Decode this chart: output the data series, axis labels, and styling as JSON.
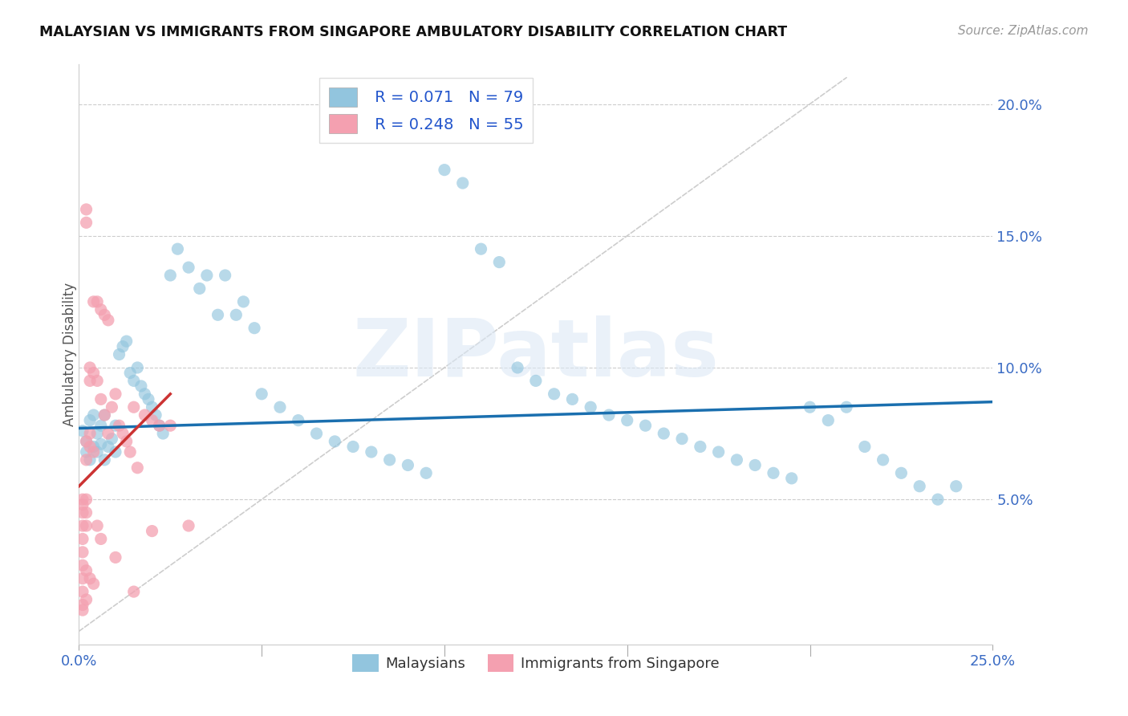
{
  "title": "MALAYSIAN VS IMMIGRANTS FROM SINGAPORE AMBULATORY DISABILITY CORRELATION CHART",
  "source": "Source: ZipAtlas.com",
  "ylabel": "Ambulatory Disability",
  "watermark": "ZIPatlas",
  "xmin": 0.0,
  "xmax": 0.25,
  "ymin": -0.005,
  "ymax": 0.215,
  "yticks": [
    0.05,
    0.1,
    0.15,
    0.2
  ],
  "ytick_labels": [
    "5.0%",
    "10.0%",
    "15.0%",
    "20.0%"
  ],
  "xtick_labels": [
    "0.0%",
    "25.0%"
  ],
  "xtick_positions": [
    0.0,
    0.25
  ],
  "legend_label1": "Malaysians",
  "legend_label2": "Immigrants from Singapore",
  "r1": 0.071,
  "n1": 79,
  "r2": 0.248,
  "n2": 55,
  "color_blue": "#92c5de",
  "color_pink": "#f4a0b0",
  "trendline1_color": "#1a6faf",
  "trendline2_color": "#cc3333",
  "trendline_ref_color": "#c8c8c8",
  "blue_x": [
    0.001,
    0.002,
    0.002,
    0.003,
    0.003,
    0.004,
    0.004,
    0.005,
    0.005,
    0.006,
    0.006,
    0.007,
    0.007,
    0.008,
    0.009,
    0.01,
    0.01,
    0.011,
    0.012,
    0.013,
    0.014,
    0.015,
    0.016,
    0.017,
    0.018,
    0.019,
    0.02,
    0.021,
    0.022,
    0.023,
    0.025,
    0.027,
    0.03,
    0.033,
    0.035,
    0.038,
    0.04,
    0.043,
    0.045,
    0.048,
    0.05,
    0.055,
    0.06,
    0.065,
    0.07,
    0.075,
    0.08,
    0.085,
    0.09,
    0.095,
    0.1,
    0.105,
    0.11,
    0.115,
    0.12,
    0.125,
    0.13,
    0.135,
    0.14,
    0.145,
    0.15,
    0.155,
    0.16,
    0.165,
    0.17,
    0.175,
    0.18,
    0.185,
    0.19,
    0.195,
    0.2,
    0.205,
    0.21,
    0.215,
    0.22,
    0.225,
    0.23,
    0.235,
    0.24
  ],
  "blue_y": [
    0.076,
    0.068,
    0.072,
    0.065,
    0.08,
    0.07,
    0.082,
    0.075,
    0.068,
    0.078,
    0.071,
    0.065,
    0.082,
    0.07,
    0.073,
    0.068,
    0.078,
    0.105,
    0.108,
    0.11,
    0.098,
    0.095,
    0.1,
    0.093,
    0.09,
    0.088,
    0.085,
    0.082,
    0.078,
    0.075,
    0.135,
    0.145,
    0.138,
    0.13,
    0.135,
    0.12,
    0.135,
    0.12,
    0.125,
    0.115,
    0.09,
    0.085,
    0.08,
    0.075,
    0.072,
    0.07,
    0.068,
    0.065,
    0.063,
    0.06,
    0.175,
    0.17,
    0.145,
    0.14,
    0.1,
    0.095,
    0.09,
    0.088,
    0.085,
    0.082,
    0.08,
    0.078,
    0.075,
    0.073,
    0.07,
    0.068,
    0.065,
    0.063,
    0.06,
    0.058,
    0.085,
    0.08,
    0.085,
    0.07,
    0.065,
    0.06,
    0.055,
    0.05,
    0.055
  ],
  "pink_x": [
    0.001,
    0.001,
    0.001,
    0.001,
    0.001,
    0.001,
    0.001,
    0.001,
    0.001,
    0.001,
    0.002,
    0.002,
    0.002,
    0.002,
    0.002,
    0.002,
    0.002,
    0.003,
    0.003,
    0.003,
    0.003,
    0.004,
    0.004,
    0.004,
    0.005,
    0.005,
    0.005,
    0.006,
    0.006,
    0.006,
    0.007,
    0.007,
    0.008,
    0.008,
    0.009,
    0.01,
    0.01,
    0.011,
    0.012,
    0.013,
    0.014,
    0.015,
    0.015,
    0.016,
    0.018,
    0.02,
    0.02,
    0.022,
    0.025,
    0.03,
    0.001,
    0.002,
    0.002,
    0.003,
    0.004
  ],
  "pink_y": [
    0.05,
    0.048,
    0.045,
    0.04,
    0.035,
    0.03,
    0.025,
    0.02,
    0.015,
    0.01,
    0.16,
    0.155,
    0.072,
    0.065,
    0.05,
    0.045,
    0.04,
    0.1,
    0.095,
    0.075,
    0.07,
    0.125,
    0.098,
    0.068,
    0.125,
    0.095,
    0.04,
    0.122,
    0.088,
    0.035,
    0.12,
    0.082,
    0.118,
    0.075,
    0.085,
    0.09,
    0.028,
    0.078,
    0.075,
    0.072,
    0.068,
    0.085,
    0.015,
    0.062,
    0.082,
    0.08,
    0.038,
    0.078,
    0.078,
    0.04,
    0.008,
    0.012,
    0.023,
    0.02,
    0.018
  ]
}
